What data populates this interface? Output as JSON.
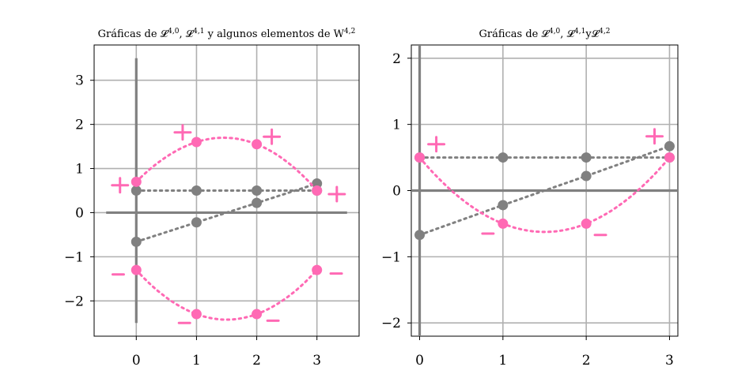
{
  "chart_data": [
    {
      "type": "scatter",
      "title": "Gráficas de 𝓛^{4,0}, 𝓛^{4,1} y algunos elementos de W_{4,2}",
      "title_parts": [
        "Gráficas de ",
        "𝓛",
        "4,0",
        ", ",
        "𝓛",
        "4,1",
        " y algunos elementos de ",
        "W",
        "4,2"
      ],
      "xlim": [
        -0.7,
        3.7
      ],
      "ylim": [
        -2.8,
        3.8
      ],
      "xticks": [
        "0",
        "1",
        "2",
        "3"
      ],
      "yticks": [
        "3",
        "2",
        "1",
        "0",
        "−1",
        "−2"
      ],
      "grid": true,
      "axis_lines": {
        "x": [
          -0.5,
          3.5
        ],
        "y": [
          -2.5,
          3.5
        ]
      },
      "series": [
        {
          "color": "#808080",
          "style": "dotted",
          "x": [
            0,
            1,
            2,
            3
          ],
          "y": [
            0.5,
            0.5,
            0.5,
            0.5
          ]
        },
        {
          "color": "#808080",
          "style": "dotted",
          "x": [
            0,
            1,
            2,
            3
          ],
          "y": [
            -0.66,
            -0.22,
            0.22,
            0.66
          ]
        },
        {
          "color": "#ff69b4",
          "style": "dotted",
          "x": [
            0,
            1,
            2,
            3
          ],
          "y": [
            0.7,
            1.6,
            1.55,
            0.5
          ]
        },
        {
          "color": "#ff69b4",
          "style": "dotted",
          "x": [
            0,
            1,
            2,
            3
          ],
          "y": [
            -1.3,
            -2.3,
            -2.3,
            -1.3
          ]
        }
      ],
      "signs": [
        {
          "symbol": "+",
          "x": -0.27,
          "y": 0.62
        },
        {
          "symbol": "+",
          "x": 0.77,
          "y": 1.82
        },
        {
          "symbol": "+",
          "x": 2.25,
          "y": 1.72
        },
        {
          "symbol": "+",
          "x": 3.33,
          "y": 0.42
        },
        {
          "symbol": "−",
          "x": -0.3,
          "y": -1.4
        },
        {
          "symbol": "−",
          "x": 0.8,
          "y": -2.5
        },
        {
          "symbol": "−",
          "x": 2.27,
          "y": -2.45
        },
        {
          "symbol": "−",
          "x": 3.32,
          "y": -1.38
        }
      ]
    },
    {
      "type": "scatter",
      "title": "Gráficas de 𝓛^{4,0}, 𝓛^{4,1} y 𝓛^{4,2}",
      "title_parts": [
        "Gráficas de ",
        "𝓛",
        "4,0",
        ", ",
        "𝓛",
        "4,1",
        "y",
        "𝓛",
        "4,2"
      ],
      "xlim": [
        -0.1,
        3.1
      ],
      "ylim": [
        -2.2,
        2.2
      ],
      "xticks": [
        "0",
        "1",
        "2",
        "3"
      ],
      "yticks": [
        "2",
        "1",
        "0",
        "−1",
        "−2"
      ],
      "grid": true,
      "axis_lines": {
        "x": [
          -0.1,
          3.1
        ],
        "y": [
          -2.2,
          2.2
        ]
      },
      "series": [
        {
          "color": "#808080",
          "style": "dotted",
          "x": [
            0,
            1,
            2,
            3
          ],
          "y": [
            0.5,
            0.5,
            0.5,
            0.5
          ]
        },
        {
          "color": "#808080",
          "style": "dotted",
          "x": [
            0,
            1,
            2,
            3
          ],
          "y": [
            -0.67,
            -0.22,
            0.22,
            0.67
          ]
        },
        {
          "color": "#ff69b4",
          "style": "dotted",
          "x": [
            0,
            1,
            2,
            3
          ],
          "y": [
            0.5,
            -0.5,
            -0.5,
            0.5
          ]
        }
      ],
      "signs": [
        {
          "symbol": "+",
          "x": 0.2,
          "y": 0.7
        },
        {
          "symbol": "+",
          "x": 2.82,
          "y": 0.82
        },
        {
          "symbol": "−",
          "x": 0.82,
          "y": -0.65
        },
        {
          "symbol": "−",
          "x": 2.17,
          "y": -0.67
        }
      ]
    }
  ]
}
